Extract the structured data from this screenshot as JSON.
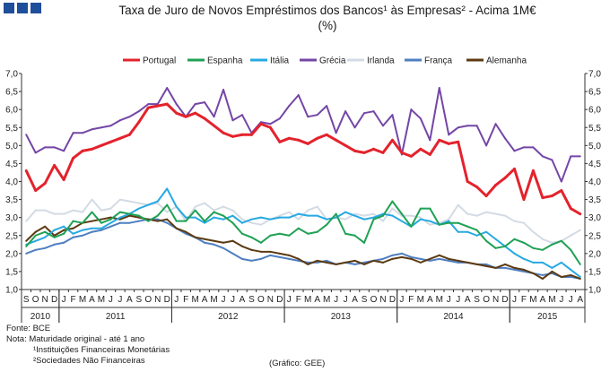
{
  "header": {
    "title_line1": "Taxa de Juro de Novos Empréstimos dos Bancos¹ às Empresas² - Acima 1M€",
    "title_line2": "(%)"
  },
  "footer": {
    "source": "Fonte: BCE",
    "note": "Nota: Maturidade original - até 1 ano",
    "footnote1": "¹Instituições Financeiras Monetárias",
    "footnote2": "²Sociedades Não Financeiras",
    "credit": "(Gráfico: GEE)"
  },
  "chart_data": {
    "type": "line",
    "title": "Taxa de Juro de Novos Empréstimos dos Bancos¹ às Empresas² - Acima 1M€",
    "ylim": [
      1.0,
      7.0
    ],
    "y_ticks": [
      "1,0",
      "1,5",
      "2,0",
      "2,5",
      "3,0",
      "3,5",
      "4,0",
      "4,5",
      "5,0",
      "5,5",
      "6,0",
      "6,5",
      "7,0"
    ],
    "legend_position": "top",
    "grid": false,
    "x": [
      "2010-09",
      "2010-10",
      "2010-11",
      "2010-12",
      "2011-01",
      "2011-02",
      "2011-03",
      "2011-04",
      "2011-05",
      "2011-06",
      "2011-07",
      "2011-08",
      "2011-09",
      "2011-10",
      "2011-11",
      "2011-12",
      "2012-01",
      "2012-02",
      "2012-03",
      "2012-04",
      "2012-05",
      "2012-06",
      "2012-07",
      "2012-08",
      "2012-09",
      "2012-10",
      "2012-11",
      "2012-12",
      "2013-01",
      "2013-02",
      "2013-03",
      "2013-04",
      "2013-05",
      "2013-06",
      "2013-07",
      "2013-08",
      "2013-09",
      "2013-10",
      "2013-11",
      "2013-12",
      "2014-01",
      "2014-02",
      "2014-03",
      "2014-04",
      "2014-05",
      "2014-06",
      "2014-07",
      "2014-08",
      "2014-09",
      "2014-10",
      "2014-11",
      "2014-12",
      "2015-01",
      "2015-02",
      "2015-03",
      "2015-04",
      "2015-05",
      "2015-06",
      "2015-07",
      "2015-08"
    ],
    "x_tick_labels": [
      "S",
      "O",
      "N",
      "D",
      "J",
      "F",
      "M",
      "A",
      "M",
      "J",
      "J",
      "A",
      "S",
      "O",
      "N",
      "D",
      "J",
      "F",
      "M",
      "A",
      "M",
      "J",
      "J",
      "A",
      "S",
      "O",
      "N",
      "D",
      "J",
      "F",
      "M",
      "A",
      "M",
      "J",
      "J",
      "A",
      "S",
      "O",
      "N",
      "D",
      "J",
      "F",
      "M",
      "A",
      "M",
      "J",
      "J",
      "A",
      "S",
      "O",
      "N",
      "D",
      "J",
      "F",
      "M",
      "A",
      "M",
      "J",
      "J",
      "A"
    ],
    "years": [
      {
        "label": "2010",
        "start": 0,
        "end": 4
      },
      {
        "label": "2011",
        "start": 4,
        "end": 16
      },
      {
        "label": "2012",
        "start": 16,
        "end": 28
      },
      {
        "label": "2013",
        "start": 28,
        "end": 40
      },
      {
        "label": "2014",
        "start": 40,
        "end": 52
      },
      {
        "label": "2015",
        "start": 52,
        "end": 60
      }
    ],
    "series": [
      {
        "name": "Portugal",
        "color": "#e3232c",
        "width": 3,
        "values": [
          4.3,
          3.75,
          3.95,
          4.45,
          4.05,
          4.65,
          4.85,
          4.9,
          5.0,
          5.1,
          5.2,
          5.3,
          5.65,
          6.05,
          6.1,
          6.15,
          5.9,
          5.8,
          5.9,
          5.75,
          5.55,
          5.35,
          5.25,
          5.3,
          5.3,
          5.6,
          5.5,
          5.1,
          5.2,
          5.15,
          5.05,
          5.2,
          5.3,
          5.15,
          5.0,
          4.85,
          4.8,
          4.9,
          4.8,
          5.15,
          4.8,
          4.7,
          4.9,
          4.75,
          5.15,
          5.05,
          5.1,
          4.0,
          3.85,
          3.6,
          3.9,
          4.1,
          4.35,
          3.5,
          4.3,
          3.55,
          3.6,
          3.75,
          3.25,
          3.1
        ]
      },
      {
        "name": "Espanha",
        "color": "#1fa154",
        "width": 2,
        "values": [
          2.2,
          2.5,
          2.6,
          2.45,
          2.55,
          2.9,
          2.85,
          3.15,
          2.85,
          2.95,
          3.15,
          3.1,
          3.05,
          2.9,
          3.05,
          3.35,
          2.9,
          2.9,
          3.2,
          2.9,
          3.15,
          3.05,
          2.85,
          2.55,
          2.45,
          2.3,
          2.5,
          2.55,
          2.5,
          2.7,
          2.55,
          2.6,
          2.8,
          3.1,
          2.55,
          2.5,
          2.3,
          2.95,
          3.05,
          3.45,
          3.1,
          2.75,
          3.25,
          3.25,
          2.8,
          2.85,
          2.85,
          2.75,
          2.65,
          2.35,
          2.15,
          2.2,
          2.4,
          2.3,
          2.15,
          2.1,
          2.25,
          2.35,
          2.1,
          1.7
        ]
      },
      {
        "name": "Itália",
        "color": "#27a9e1",
        "width": 2,
        "values": [
          2.25,
          2.35,
          2.45,
          2.65,
          2.75,
          2.55,
          2.65,
          2.7,
          2.7,
          2.85,
          3.0,
          3.1,
          3.25,
          3.35,
          3.45,
          3.8,
          3.3,
          3.0,
          3.0,
          2.85,
          3.0,
          2.95,
          3.05,
          2.85,
          2.95,
          3.0,
          2.95,
          3.0,
          3.0,
          3.1,
          3.05,
          3.05,
          2.95,
          3.0,
          3.15,
          3.05,
          2.95,
          3.0,
          3.1,
          3.05,
          2.9,
          2.75,
          2.95,
          2.9,
          2.8,
          2.9,
          2.6,
          2.6,
          2.5,
          2.6,
          2.4,
          2.2,
          2.0,
          1.85,
          1.75,
          1.75,
          1.6,
          1.75,
          1.55,
          1.35
        ]
      },
      {
        "name": "Grécia",
        "color": "#7446a6",
        "width": 2,
        "values": [
          5.3,
          4.8,
          4.95,
          4.95,
          4.85,
          5.35,
          5.35,
          5.45,
          5.5,
          5.55,
          5.7,
          5.8,
          5.95,
          6.15,
          6.15,
          6.6,
          6.15,
          5.8,
          6.15,
          6.2,
          5.8,
          6.55,
          5.7,
          5.85,
          5.35,
          5.65,
          5.6,
          5.75,
          6.1,
          6.4,
          5.8,
          5.85,
          6.1,
          5.35,
          5.95,
          5.5,
          5.9,
          5.95,
          5.55,
          5.85,
          4.75,
          6.0,
          5.75,
          5.15,
          6.6,
          5.3,
          5.5,
          5.55,
          5.55,
          5.0,
          5.6,
          5.2,
          4.85,
          4.95,
          4.95,
          4.7,
          4.6,
          4.0,
          4.7,
          4.7
        ]
      },
      {
        "name": "Irlanda",
        "color": "#d3dbe4",
        "width": 2,
        "values": [
          2.9,
          3.2,
          3.2,
          3.1,
          3.1,
          3.2,
          3.15,
          3.5,
          3.2,
          3.25,
          3.5,
          3.45,
          3.4,
          3.35,
          3.4,
          3.15,
          3.3,
          2.9,
          3.3,
          3.4,
          3.2,
          3.3,
          3.2,
          2.95,
          2.85,
          2.8,
          2.95,
          3.05,
          3.15,
          2.95,
          3.2,
          3.3,
          2.95,
          3.0,
          2.95,
          3.1,
          3.05,
          3.1,
          2.9,
          3.25,
          3.05,
          3.05,
          3.0,
          2.8,
          2.85,
          2.95,
          3.35,
          3.1,
          3.05,
          3.15,
          3.1,
          3.05,
          2.9,
          2.85,
          2.6,
          2.4,
          2.3,
          2.35,
          2.5,
          2.65
        ]
      },
      {
        "name": "França",
        "color": "#4f7fc1",
        "width": 2,
        "values": [
          2.0,
          2.1,
          2.15,
          2.25,
          2.3,
          2.45,
          2.5,
          2.6,
          2.65,
          2.75,
          2.85,
          2.85,
          2.9,
          2.95,
          2.95,
          2.85,
          2.7,
          2.55,
          2.45,
          2.3,
          2.25,
          2.15,
          2.0,
          1.85,
          1.8,
          1.85,
          1.95,
          1.9,
          1.85,
          1.8,
          1.75,
          1.75,
          1.8,
          1.7,
          1.75,
          1.7,
          1.75,
          1.8,
          1.85,
          1.95,
          2.0,
          1.9,
          1.85,
          1.8,
          1.85,
          1.8,
          1.75,
          1.75,
          1.7,
          1.7,
          1.6,
          1.6,
          1.55,
          1.5,
          1.45,
          1.4,
          1.45,
          1.35,
          1.35,
          1.3
        ]
      },
      {
        "name": "Alemanha",
        "color": "#5c3a12",
        "width": 2,
        "values": [
          2.35,
          2.6,
          2.75,
          2.5,
          2.65,
          2.7,
          2.85,
          2.9,
          2.95,
          3.0,
          2.95,
          3.05,
          3.0,
          2.95,
          2.9,
          2.95,
          2.7,
          2.6,
          2.45,
          2.4,
          2.35,
          2.3,
          2.35,
          2.2,
          2.1,
          2.05,
          2.05,
          2.0,
          1.95,
          1.85,
          1.7,
          1.8,
          1.75,
          1.7,
          1.75,
          1.8,
          1.7,
          1.8,
          1.75,
          1.85,
          1.9,
          1.85,
          1.75,
          1.85,
          1.95,
          1.85,
          1.8,
          1.75,
          1.7,
          1.65,
          1.6,
          1.7,
          1.6,
          1.55,
          1.45,
          1.3,
          1.5,
          1.35,
          1.4,
          1.3
        ]
      }
    ]
  }
}
